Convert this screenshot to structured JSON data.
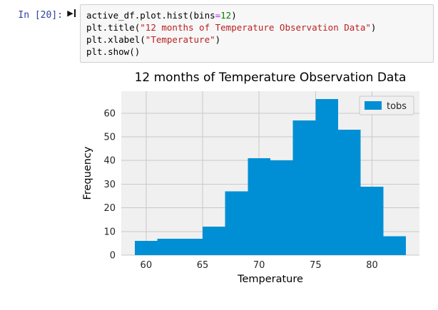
{
  "colors": {
    "bar": "#008fd5",
    "plot_bg": "#f0f0f0",
    "grid": "#c9c9c9",
    "prompt": "#303F9F",
    "figure_bg": "#ffffff",
    "tick_text": "#262626"
  },
  "cell": {
    "prompt": "In [20]:",
    "code_lines": [
      [
        {
          "t": "active_df.plot.hist(bins",
          "y": "plain"
        },
        {
          "t": "=",
          "y": "op"
        },
        {
          "t": "12",
          "y": "num"
        },
        {
          "t": ")",
          "y": "plain"
        }
      ],
      [
        {
          "t": "plt.title(",
          "y": "plain"
        },
        {
          "t": "\"12 months of Temperature Observation Data\"",
          "y": "str"
        },
        {
          "t": ")",
          "y": "plain"
        }
      ],
      [
        {
          "t": "plt.xlabel(",
          "y": "plain"
        },
        {
          "t": "\"Temperature\"",
          "y": "str"
        },
        {
          "t": ")",
          "y": "plain"
        }
      ],
      [
        {
          "t": "plt.show()",
          "y": "plain"
        }
      ]
    ]
  },
  "chart_data": {
    "type": "bar",
    "title": "12 months of Temperature Observation Data",
    "xlabel": "Temperature",
    "ylabel": "Frequency",
    "legend": [
      "tobs"
    ],
    "legend_position": "upper right",
    "grid": true,
    "bin_edges": [
      59,
      61,
      63,
      65,
      67,
      69,
      71,
      73,
      75,
      77,
      79,
      81,
      83
    ],
    "counts": [
      6,
      7,
      7,
      12,
      27,
      41,
      40,
      57,
      66,
      53,
      29,
      8
    ],
    "xticks": [
      60,
      65,
      70,
      75,
      80
    ],
    "yticks": [
      0,
      10,
      20,
      30,
      40,
      50,
      60
    ],
    "xlim": [
      57.8,
      84.2
    ],
    "ylim": [
      0,
      69.3
    ],
    "bar_color": "#008fd5"
  }
}
